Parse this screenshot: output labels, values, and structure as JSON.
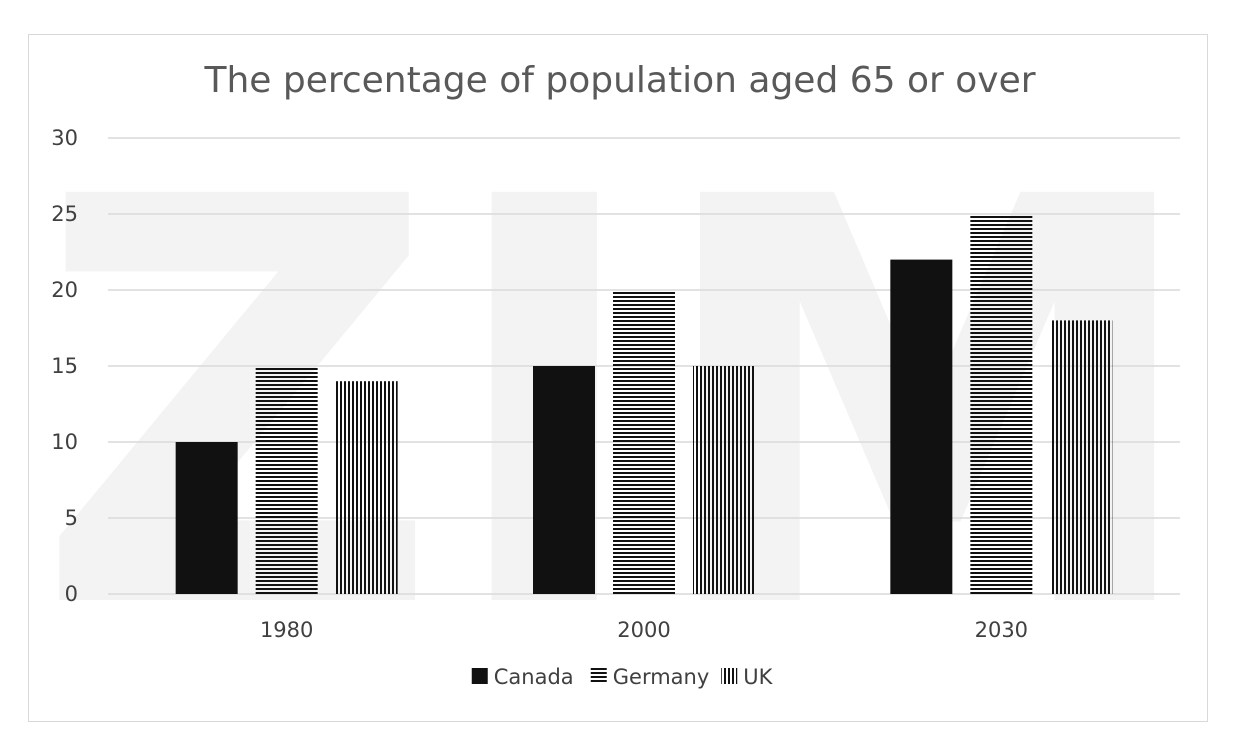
{
  "chart_data": {
    "type": "bar",
    "title": "The percentage of population aged 65 or over",
    "categories": [
      "1980",
      "2000",
      "2030"
    ],
    "series": [
      {
        "name": "Canada",
        "values": [
          10,
          15,
          22
        ],
        "pattern": "solid"
      },
      {
        "name": "Germany",
        "values": [
          15,
          20,
          25
        ],
        "pattern": "horizontal-stripes"
      },
      {
        "name": "UK",
        "values": [
          14,
          15,
          18
        ],
        "pattern": "vertical-stripes"
      }
    ],
    "ylim": [
      0,
      30
    ],
    "yticks": [
      "0",
      "5",
      "10",
      "15",
      "20",
      "25",
      "30"
    ],
    "xlabel": "",
    "ylabel": "",
    "grid": true,
    "legend_position": "bottom",
    "colors": {
      "bar": "#111111",
      "grid": "#d9d9d9",
      "text": "#404040",
      "title": "#595959"
    }
  },
  "watermark": {
    "text": "ZIM"
  }
}
